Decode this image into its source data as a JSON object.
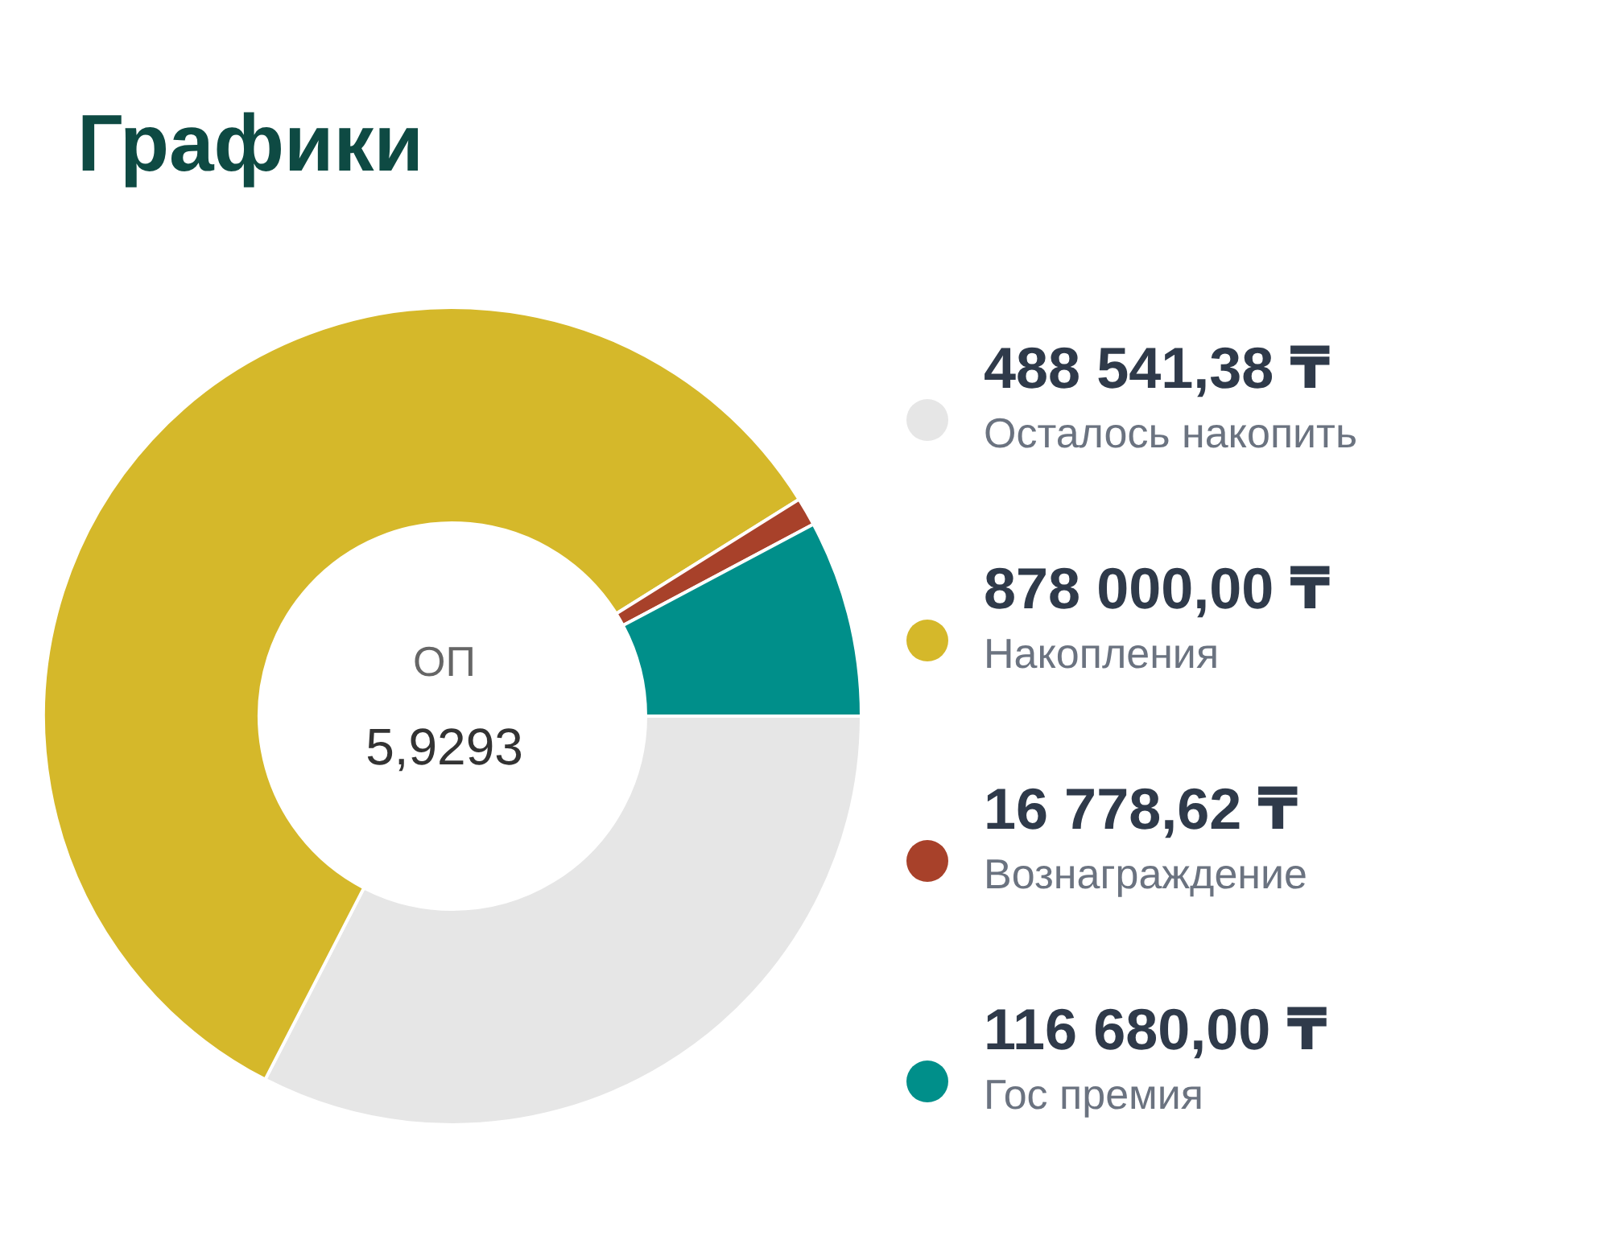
{
  "chart_data": {
    "type": "donut",
    "title": "Графики",
    "categories": [
      "Осталось накопить",
      "Накопления",
      "Вознаграждение",
      "Гос премия"
    ],
    "values": [
      488541.38,
      878000.0,
      16778.62,
      116680.0
    ],
    "value_labels": [
      "488 541,38 ₸",
      "878 000,00 ₸",
      "16 778,62 ₸",
      "116 680,00 ₸"
    ],
    "colors": [
      "#e6e6e6",
      "#d5b82a",
      "#a8412a",
      "#008f8a"
    ],
    "annotations": [
      "ОП",
      "5,9293"
    ],
    "legend": "right"
  }
}
